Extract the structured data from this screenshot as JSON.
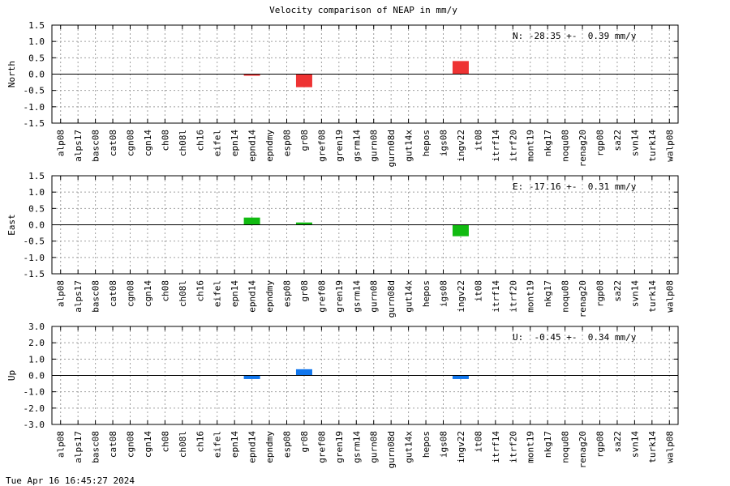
{
  "chart_data": {
    "type": "bar",
    "title": "Velocity comparison of NEAP in mm/y",
    "categories": [
      "alp08",
      "alps17",
      "basc08",
      "cat08",
      "cgn08",
      "cgn14",
      "ch08",
      "ch08l",
      "ch16",
      "eifel",
      "epn14",
      "epnd14",
      "epndmy",
      "esp08",
      "gr08",
      "gref08",
      "gren19",
      "gsrm14",
      "gurn08",
      "gurn08d",
      "gut14x",
      "hepos",
      "igs08",
      "ingv22",
      "it08",
      "itrf14",
      "itrf20",
      "mont19",
      "nkg17",
      "noqu08",
      "renag20",
      "rgp08",
      "sa22",
      "svn14",
      "turk14",
      "walp08"
    ],
    "grid": true,
    "panels": [
      {
        "ylabel": "North",
        "ylim": [
          -1.5,
          1.5
        ],
        "yticks": [
          "1.5",
          "1.0",
          "0.5",
          "0.0",
          "-0.5",
          "-1.0",
          "-1.5"
        ],
        "ytick_values": [
          1.5,
          1.0,
          0.5,
          0.0,
          -0.5,
          -1.0,
          -1.5
        ],
        "annotation": "N: -28.35 +-  0.39 mm/y",
        "color": "#ee3333",
        "values": {
          "epnd14": -0.05,
          "gr08": -0.4,
          "ingv22": 0.4
        }
      },
      {
        "ylabel": "East",
        "ylim": [
          -1.5,
          1.5
        ],
        "yticks": [
          "1.5",
          "1.0",
          "0.5",
          "0.0",
          "-0.5",
          "-1.0",
          "-1.5"
        ],
        "ytick_values": [
          1.5,
          1.0,
          0.5,
          0.0,
          -0.5,
          -1.0,
          -1.5
        ],
        "annotation": "E: -17.16 +-  0.31 mm/y",
        "color": "#11bb11",
        "values": {
          "epnd14": 0.22,
          "gr08": 0.07,
          "ingv22": -0.35
        }
      },
      {
        "ylabel": "Up",
        "ylim": [
          -3.0,
          3.0
        ],
        "yticks": [
          "3.0",
          "2.0",
          "1.0",
          "0.0",
          "-1.0",
          "-2.0",
          "-3.0"
        ],
        "ytick_values": [
          3.0,
          2.0,
          1.0,
          0.0,
          -1.0,
          -2.0,
          -3.0
        ],
        "annotation": "U:  -0.45 +-  0.34 mm/y",
        "color": "#1177ee",
        "values": {
          "epnd14": -0.22,
          "gr08": 0.38,
          "ingv22": -0.22
        }
      }
    ]
  },
  "footer": {
    "timestamp": "Tue Apr 16 16:45:27 2024"
  }
}
